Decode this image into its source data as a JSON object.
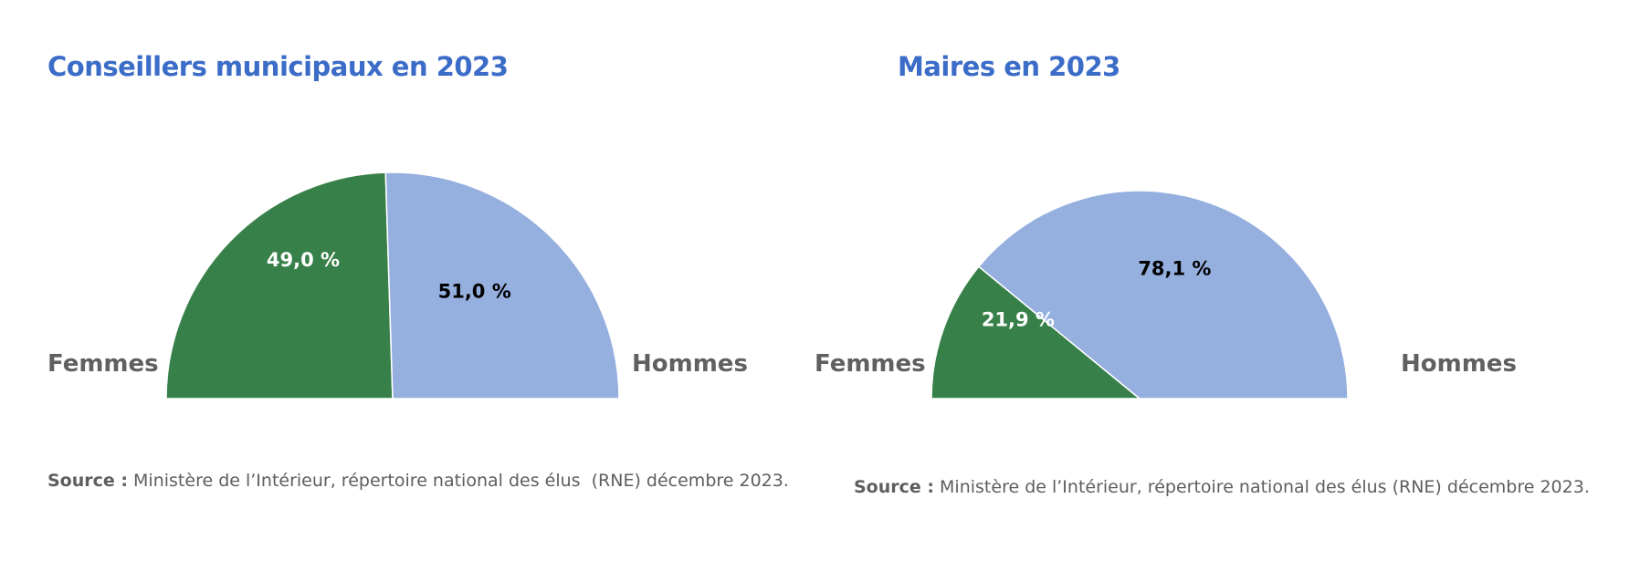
{
  "chart_data": [
    {
      "type": "pie",
      "variant": "half-donut",
      "title": "Conseillers municipaux en 2023",
      "categories": [
        "Femmes",
        "Hommes"
      ],
      "values": [
        49.0,
        51.0
      ],
      "value_labels": [
        "49,0 %",
        "51,0 %"
      ],
      "colors": [
        "#388049",
        "#95afdf"
      ],
      "label_colors": [
        "#ffffff",
        "#000000"
      ],
      "source_label": "Source :",
      "source_text": " Ministère de l’Intérieur, répertoire national des élus  (RNE) décembre 2023."
    },
    {
      "type": "pie",
      "variant": "half-donut",
      "title": "Maires en 2023",
      "categories": [
        "Femmes",
        "Hommes"
      ],
      "values": [
        21.9,
        78.1
      ],
      "value_labels": [
        "21,9 %",
        "78,1 %"
      ],
      "colors": [
        "#388049",
        "#95afdf"
      ],
      "label_colors": [
        "#ffffff",
        "#000000"
      ],
      "source_label": "Source :",
      "source_text": " Ministère de l’Intérieur, répertoire national des élus (RNE) décembre 2023."
    }
  ]
}
